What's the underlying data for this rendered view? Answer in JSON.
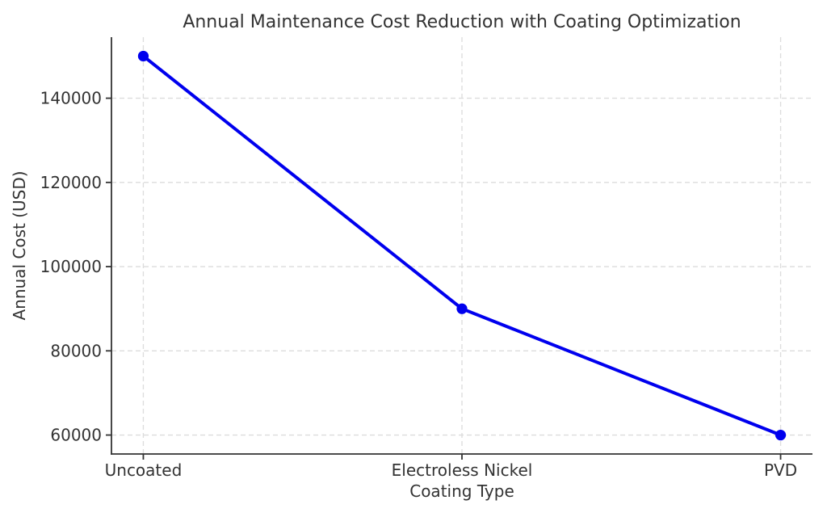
{
  "chart_data": {
    "type": "line",
    "title": "Annual Maintenance Cost Reduction with Coating Optimization",
    "xlabel": "Coating Type",
    "ylabel": "Annual Cost (USD)",
    "categories": [
      "Uncoated",
      "Electroless Nickel",
      "PVD"
    ],
    "values": [
      150000,
      90000,
      60000
    ],
    "yticks": [
      60000,
      80000,
      100000,
      120000,
      140000
    ],
    "ylim": [
      55500,
      154500
    ],
    "grid": "dashed",
    "legend_position": "none",
    "colors": {
      "line": "#0000ee",
      "marker": "#0000ee",
      "grid": "#dcdcdc",
      "spine": "#333333",
      "text": "#333333",
      "background": "#ffffff"
    }
  }
}
